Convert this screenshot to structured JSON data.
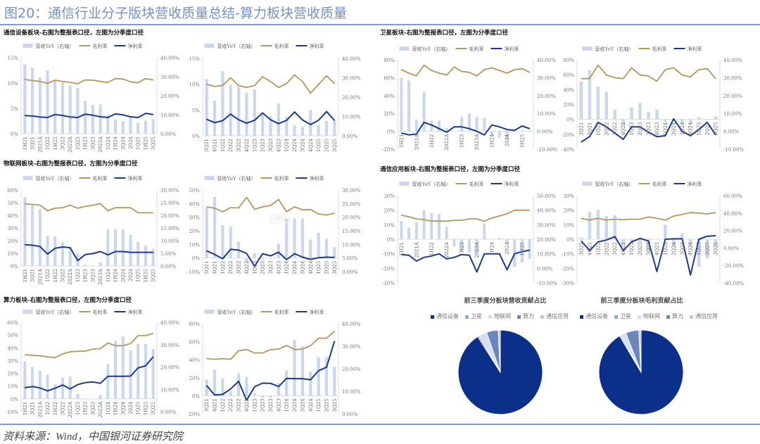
{
  "header": {
    "title": "图20：通信行业分子版块营收质量总结-算力板块营收质量"
  },
  "sections": {
    "equipment": "通信设备板块-右图为整报表口径，左图为分季度口径",
    "satellite": "卫星板块-右图为整报表口径，左图为分季度口径",
    "iot": "物联网板块-右图为整报表口径，左图为分季度口径",
    "application": "通信应用板块-右图为整报表口径，左图为分季度口径",
    "computing": "算力板块-右图为整报表口径，左图为分季度口径"
  },
  "legend": {
    "bar": "营收YoY（右轴）",
    "gross": "毛利率",
    "net": "净利率"
  },
  "watermark": "右图区",
  "source": "资料来源：Wind，中国银河证券研究院",
  "colors": {
    "bar": "#c9d7ef",
    "gross": "#b8955a",
    "net": "#1a3a8f",
    "accent": "#7391c8"
  },
  "chart_data": [
    {
      "type": "bar+line",
      "name": "equipment-half",
      "ylim": [
        0,
        15
      ],
      "y2lim": [
        0,
        40
      ],
      "left_ticks": [
        "0%",
        "5%",
        "10%",
        "15%"
      ],
      "right_ticks": [
        "0.00%",
        "10.00%",
        "20.00%",
        "30.00%",
        "40.00%"
      ],
      "label_every": 1,
      "categories": [
        "1H21",
        "3Q21",
        "2021A",
        "1Q22",
        "1H22",
        "3Q22",
        "2022A",
        "1Q23",
        "1H23",
        "3Q23",
        "2023A",
        "1Q24",
        "1H24",
        "3Q24",
        "2024",
        "1Q25",
        "1H25",
        "3Q25"
      ],
      "bars": [
        13.7,
        13.1,
        11.1,
        12.5,
        10.5,
        10.1,
        9.5,
        9,
        6.5,
        5.7,
        5.8,
        3.7,
        2.8,
        2.5,
        3.3,
        2.1,
        2.6,
        2.9
      ],
      "gross": [
        28.5,
        28,
        27.5,
        26.5,
        28.2,
        27.5,
        27,
        26.3,
        28.3,
        28.2,
        27.5,
        27,
        29,
        28.8,
        27.3,
        26.8,
        29,
        28.3
      ],
      "net": [
        9.5,
        9.3,
        8.8,
        8.5,
        10.1,
        9.6,
        8.8,
        8.5,
        10.3,
        9.7,
        8.9,
        8.5,
        10.4,
        9.9,
        8.9,
        8.5,
        10.7,
        10.1
      ]
    },
    {
      "type": "bar+line",
      "name": "equipment-quarter",
      "ylim": [
        0,
        15
      ],
      "y2lim": [
        0,
        40
      ],
      "left_ticks": [
        "0%",
        "5%",
        "10%",
        "15%"
      ],
      "right_ticks": [
        "0.00%",
        "10.00%",
        "20.00%",
        "30.00%",
        "40.00%"
      ],
      "label_every": 1,
      "categories": [
        "3Q21",
        "4Q21",
        "1Q22",
        "2Q22",
        "3Q22",
        "4Q22",
        "1Q23",
        "2Q23",
        "3Q23",
        "4Q23",
        "1Q24",
        "2Q24",
        "3Q24",
        "4Q24",
        "1Q25",
        "2Q25",
        "3Q25"
      ],
      "bars": [
        11,
        6.8,
        12.5,
        9.9,
        9.5,
        8.3,
        9,
        4.2,
        3.9,
        6.3,
        3.7,
        2,
        1.7,
        5,
        2.1,
        2.9,
        3
      ],
      "gross": [
        26.7,
        25.5,
        26,
        30,
        26,
        25,
        26,
        30.5,
        28,
        25,
        27,
        31.5,
        28,
        22,
        26.5,
        31,
        27
      ],
      "net": [
        8.5,
        6.8,
        7.8,
        11.2,
        8.3,
        6.5,
        8,
        11.8,
        8.3,
        6.3,
        8,
        12.3,
        8.2,
        5.8,
        8,
        12.5,
        8
      ]
    },
    {
      "type": "bar+line",
      "name": "satellite-half",
      "ylim": [
        -20,
        80
      ],
      "y2lim": [
        -10,
        40
      ],
      "left_ticks": [
        "-20%",
        "0%",
        "20%",
        "40%",
        "60%",
        "80%"
      ],
      "right_ticks": [
        "-10.00%",
        "0.00%",
        "10.00%",
        "20.00%",
        "30.00%",
        "40.00%"
      ],
      "label_every": 2,
      "categories": [
        "1H21",
        "3Q21",
        "2021A",
        "1Q22",
        "1H22",
        "3Q22",
        "2022A",
        "1Q23",
        "1H23",
        "3Q23",
        "2023A",
        "1Q24",
        "1H24",
        "3Q24",
        "2024",
        "1Q25",
        "1H25",
        "3Q25"
      ],
      "bars": [
        60,
        57,
        13,
        44,
        12,
        12,
        4,
        0,
        16,
        20,
        16,
        15,
        -5,
        -7,
        -9,
        0,
        1,
        1
      ],
      "gross": [
        34.5,
        32.5,
        31,
        37,
        34,
        32.5,
        31.5,
        36,
        33.5,
        33,
        31,
        34.5,
        35.5,
        34,
        32.5,
        34.5,
        35,
        33
      ],
      "net": [
        -1,
        -2,
        -1.5,
        5,
        3.5,
        1.5,
        -0.5,
        2.5,
        2.5,
        1.5,
        0,
        -2,
        3.5,
        2.5,
        1,
        0.5,
        3,
        1.5
      ]
    },
    {
      "type": "bar+line",
      "name": "satellite-quarter",
      "ylim": [
        -40,
        80
      ],
      "y2lim": [
        -10,
        40
      ],
      "left_ticks": [
        "-40%",
        "-20%",
        "0%",
        "20%",
        "40%",
        "60%",
        "80%"
      ],
      "right_ticks": [
        "-10.00%",
        "0.00%",
        "10.00%",
        "20.00%",
        "30.00%",
        "40.00%"
      ],
      "label_every": 1,
      "categories": [
        "3Q21",
        "4Q21",
        "1Q22",
        "2Q22",
        "3Q22",
        "4Q22",
        "1Q23",
        "2Q23",
        "3Q23",
        "4Q23",
        "1Q24",
        "2Q24",
        "3Q24",
        "4Q24",
        "1Q25",
        "2Q25",
        "3Q25"
      ],
      "bars": [
        51,
        66,
        44,
        37,
        13,
        -8,
        16,
        22,
        10,
        13,
        -3,
        0,
        -5,
        -5,
        3,
        -1,
        4
      ],
      "gross": [
        29.5,
        29.5,
        37,
        31.5,
        30,
        29.5,
        35.5,
        31.5,
        31,
        28,
        34.5,
        35.5,
        31.5,
        30.5,
        34.5,
        35,
        29.5
      ],
      "net": [
        -6,
        -3,
        5,
        2.5,
        -1,
        -4.5,
        2.5,
        2.5,
        -0.5,
        -3,
        -2.5,
        7,
        0,
        -2.5,
        1,
        5,
        -2
      ]
    },
    {
      "type": "bar+line",
      "name": "iot-half",
      "ylim": [
        0,
        60
      ],
      "y2lim": [
        0,
        30
      ],
      "left_ticks": [
        "0%",
        "10%",
        "20%",
        "30%",
        "40%",
        "50%",
        "60%"
      ],
      "right_ticks": [
        "0.00%",
        "5.00%",
        "10.00%",
        "15.00%",
        "20.00%",
        "25.00%",
        "30.00%"
      ],
      "label_every": 1,
      "categories": [
        "1H21",
        "3Q21",
        "2021A",
        "1Q22",
        "1H22",
        "3Q22",
        "2022A",
        "1Q23",
        "1H23",
        "3Q23",
        "2023A",
        "1Q24",
        "1H24",
        "3Q24",
        "2024",
        "1Q25",
        "1H25",
        "3Q25"
      ],
      "bars": [
        54.5,
        48,
        45,
        24,
        23.5,
        19,
        15,
        10,
        1,
        0,
        3,
        29,
        29,
        29,
        24.5,
        19,
        16,
        13.5
      ],
      "gross": [
        24.5,
        24.3,
        24,
        21.8,
        22.8,
        23,
        24,
        22.8,
        23.5,
        24,
        24.6,
        21.8,
        23,
        23,
        23,
        21,
        21,
        21
      ],
      "net": [
        8.4,
        8.2,
        7.7,
        4.7,
        7,
        7.5,
        7.2,
        2.1,
        4.5,
        4.9,
        5.7,
        4.4,
        5.7,
        5.7,
        5.4,
        5.4,
        5.4,
        5.4
      ]
    },
    {
      "type": "bar+line",
      "name": "iot-quarter",
      "ylim": [
        -10,
        50
      ],
      "y2lim": [
        0,
        30
      ],
      "left_ticks": [
        "-10%",
        "0%",
        "10%",
        "20%",
        "30%",
        "40%",
        "50%"
      ],
      "right_ticks": [
        "0.00%",
        "5.00%",
        "10.00%",
        "15.00%",
        "20.00%",
        "25.00%",
        "30.00%"
      ],
      "label_every": 1,
      "categories": [
        "3Q21",
        "4Q21",
        "1Q22",
        "2Q22",
        "3Q22",
        "4Q22",
        "1Q23",
        "2Q23",
        "3Q23",
        "4Q23",
        "1Q24",
        "2Q24",
        "3Q24",
        "4Q24",
        "1Q25",
        "2Q25",
        "3Q25"
      ],
      "bars": [
        37,
        45,
        24,
        23,
        12,
        -3,
        3.5,
        -1,
        -0.5,
        10.5,
        29,
        29,
        29,
        13.5,
        18.5,
        14,
        8
      ],
      "gross": [
        23.8,
        23.3,
        22,
        23.5,
        23.4,
        27.3,
        22.9,
        23.8,
        24.3,
        26.5,
        22,
        23.8,
        22.7,
        22.8,
        21.2,
        20.8,
        21.5
      ],
      "net": [
        7.6,
        6.3,
        4.7,
        8.2,
        7.9,
        6.7,
        2,
        6.6,
        5.8,
        7.1,
        4.4,
        6.6,
        5.3,
        4.5,
        5.1,
        5.3,
        5.2
      ]
    },
    {
      "type": "bar+line",
      "name": "application-half",
      "ylim": [
        -30,
        30
      ],
      "y2lim": [
        -10,
        50
      ],
      "left_ticks": [
        "-30%",
        "-20%",
        "-10%",
        "0%",
        "10%",
        "20%",
        "30%"
      ],
      "right_ticks": [
        "-10.00%",
        "0.00%",
        "10.00%",
        "20.00%",
        "30.00%",
        "40.00%",
        "50.00%"
      ],
      "label_every": 2,
      "categories": [
        "1H21",
        "3Q21",
        "2021A",
        "1Q22",
        "1H22",
        "3Q22",
        "2022A",
        "1Q23",
        "1H23",
        "3Q23",
        "2023A",
        "1Q24",
        "1H24",
        "3Q24",
        "2024",
        "1Q25",
        "1H25",
        "3Q25"
      ],
      "bars": [
        12.5,
        8,
        11.5,
        20,
        18,
        17.5,
        8.5,
        -5,
        -8,
        -9,
        -9,
        10.5,
        0,
        1,
        -3,
        -19,
        -16,
        -13.5
      ],
      "gross": [
        36.5,
        35.5,
        34,
        33.5,
        32.5,
        32.5,
        32.5,
        33,
        33,
        34,
        34,
        32.5,
        34.5,
        36,
        37.5,
        40,
        40,
        40
      ],
      "net": [
        9.5,
        9,
        5,
        7.5,
        8.5,
        10,
        6.5,
        7.5,
        9.5,
        9,
        -2.5,
        10,
        10,
        10,
        -1,
        10,
        11.5,
        12.5
      ]
    },
    {
      "type": "bar+line",
      "name": "application-quarter",
      "ylim": [
        -30,
        30
      ],
      "y2lim": [
        -40,
        60
      ],
      "left_ticks": [
        "-30%",
        "-20%",
        "-10%",
        "0%",
        "10%",
        "20%",
        "30%"
      ],
      "right_ticks": [
        "-40.00%",
        "-20.00%",
        "0.00%",
        "20.00%",
        "40.00%",
        "60.00%"
      ],
      "label_every": 1,
      "categories": [
        "3Q21",
        "4Q21",
        "1Q22",
        "2Q22",
        "3Q22",
        "4Q22",
        "1Q23",
        "2Q23",
        "3Q23",
        "4Q23",
        "1Q24",
        "2Q24",
        "3Q24",
        "4Q24",
        "1Q25",
        "2Q25",
        "3Q25"
      ],
      "bars": [
        1,
        19,
        20,
        16,
        16.5,
        -4,
        -3,
        -2,
        -8,
        0,
        10,
        -5,
        4,
        -5,
        -19,
        -13,
        -5
      ],
      "gross": [
        34,
        32,
        34,
        32,
        33,
        32.5,
        33,
        33,
        35.5,
        34,
        32,
        36.5,
        38.5,
        40.5,
        40,
        39,
        40.5
      ],
      "net": [
        8,
        -3,
        7,
        9,
        13,
        -3,
        7,
        11,
        8,
        -27,
        10,
        10.5,
        10.5,
        -31,
        10,
        13.5,
        14
      ]
    },
    {
      "type": "bar+line",
      "name": "computing-half",
      "ylim": [
        -10,
        60
      ],
      "y2lim": [
        0,
        40
      ],
      "left_ticks": [
        "-10%",
        "0%",
        "10%",
        "20%",
        "30%",
        "40%",
        "50%",
        "60%"
      ],
      "right_ticks": [
        "0.00%",
        "10.00%",
        "20.00%",
        "30.00%",
        "40.00%"
      ],
      "label_every": 1,
      "categories": [
        "1H21",
        "3Q21",
        "2021A",
        "1Q22",
        "1H22",
        "3Q22",
        "2022A",
        "1Q23",
        "1H23",
        "3Q23",
        "2023A",
        "1Q24",
        "1H24",
        "3Q24",
        "2024",
        "1Q25",
        "1H25",
        "3Q25"
      ],
      "bars": [
        29.5,
        25,
        22,
        19,
        11.5,
        16.5,
        17.5,
        4,
        0.5,
        0,
        3,
        27.5,
        45.5,
        49,
        38,
        43,
        43,
        39
      ],
      "gross": [
        25.5,
        25.2,
        25,
        24.5,
        24.2,
        25.8,
        26.8,
        27,
        27.1,
        28,
        28.2,
        30.7,
        29.5,
        29.5,
        30.5,
        34,
        34,
        35
      ],
      "net": [
        10.7,
        11.2,
        10.6,
        9.3,
        10.5,
        11.9,
        10.2,
        12.1,
        13,
        13.3,
        12.7,
        15.8,
        15.8,
        15.8,
        15.9,
        19.6,
        20.5,
        24.5
      ]
    },
    {
      "type": "bar+line",
      "name": "computing-quarter",
      "ylim": [
        -20,
        80
      ],
      "y2lim": [
        0,
        40
      ],
      "left_ticks": [
        "-20%",
        "0%",
        "20%",
        "40%",
        "60%",
        "80%"
      ],
      "right_ticks": [
        "0.00%",
        "10.00%",
        "20.00%",
        "30.00%",
        "40.00%"
      ],
      "label_every": 1,
      "categories": [
        "3Q21",
        "4Q21",
        "1Q22",
        "2Q22",
        "3Q22",
        "4Q22",
        "1Q23",
        "2Q23",
        "3Q23",
        "4Q23",
        "1Q24",
        "2Q24",
        "3Q24",
        "4Q24",
        "1Q25",
        "2Q25",
        "3Q25"
      ],
      "bars": [
        18,
        29,
        19,
        5,
        25,
        21,
        3,
        -2,
        -2,
        14,
        28,
        62,
        55,
        27,
        43,
        43,
        32
      ],
      "gross": [
        24.5,
        24.2,
        24.5,
        24.2,
        28,
        28.5,
        27,
        27,
        28.5,
        28.7,
        30.3,
        28.5,
        28.7,
        30.2,
        33.5,
        33.6,
        36.6
      ],
      "net": [
        12.5,
        8.3,
        8.6,
        11,
        14.4,
        6,
        12,
        13.6,
        13.5,
        12.1,
        15.7,
        15.6,
        15.6,
        15.1,
        19.1,
        20.7,
        32.2
      ]
    },
    {
      "type": "pie",
      "name": "revenue-contribution",
      "title": "前三季度分板块营收贡献占比",
      "labels": [
        "通信设备",
        "卫星",
        "物联网",
        "算力",
        "通信应用"
      ],
      "values": [
        91,
        0.7,
        3,
        4.5,
        0.8
      ],
      "colors": [
        "#0c2f8a",
        "#8ea9db",
        "#d3def3",
        "#6b86bd",
        "#c8c8c8"
      ]
    },
    {
      "type": "pie",
      "name": "gross-profit-contribution",
      "title": "前三季度分板块毛利贡献占比",
      "labels": [
        "通信设备",
        "卫星",
        "物联网",
        "算力",
        "通信应用"
      ],
      "values": [
        91.5,
        0.6,
        2,
        5,
        0.9
      ],
      "colors": [
        "#0c2f8a",
        "#8ea9db",
        "#d3def3",
        "#6b86bd",
        "#c8c8c8"
      ]
    }
  ]
}
